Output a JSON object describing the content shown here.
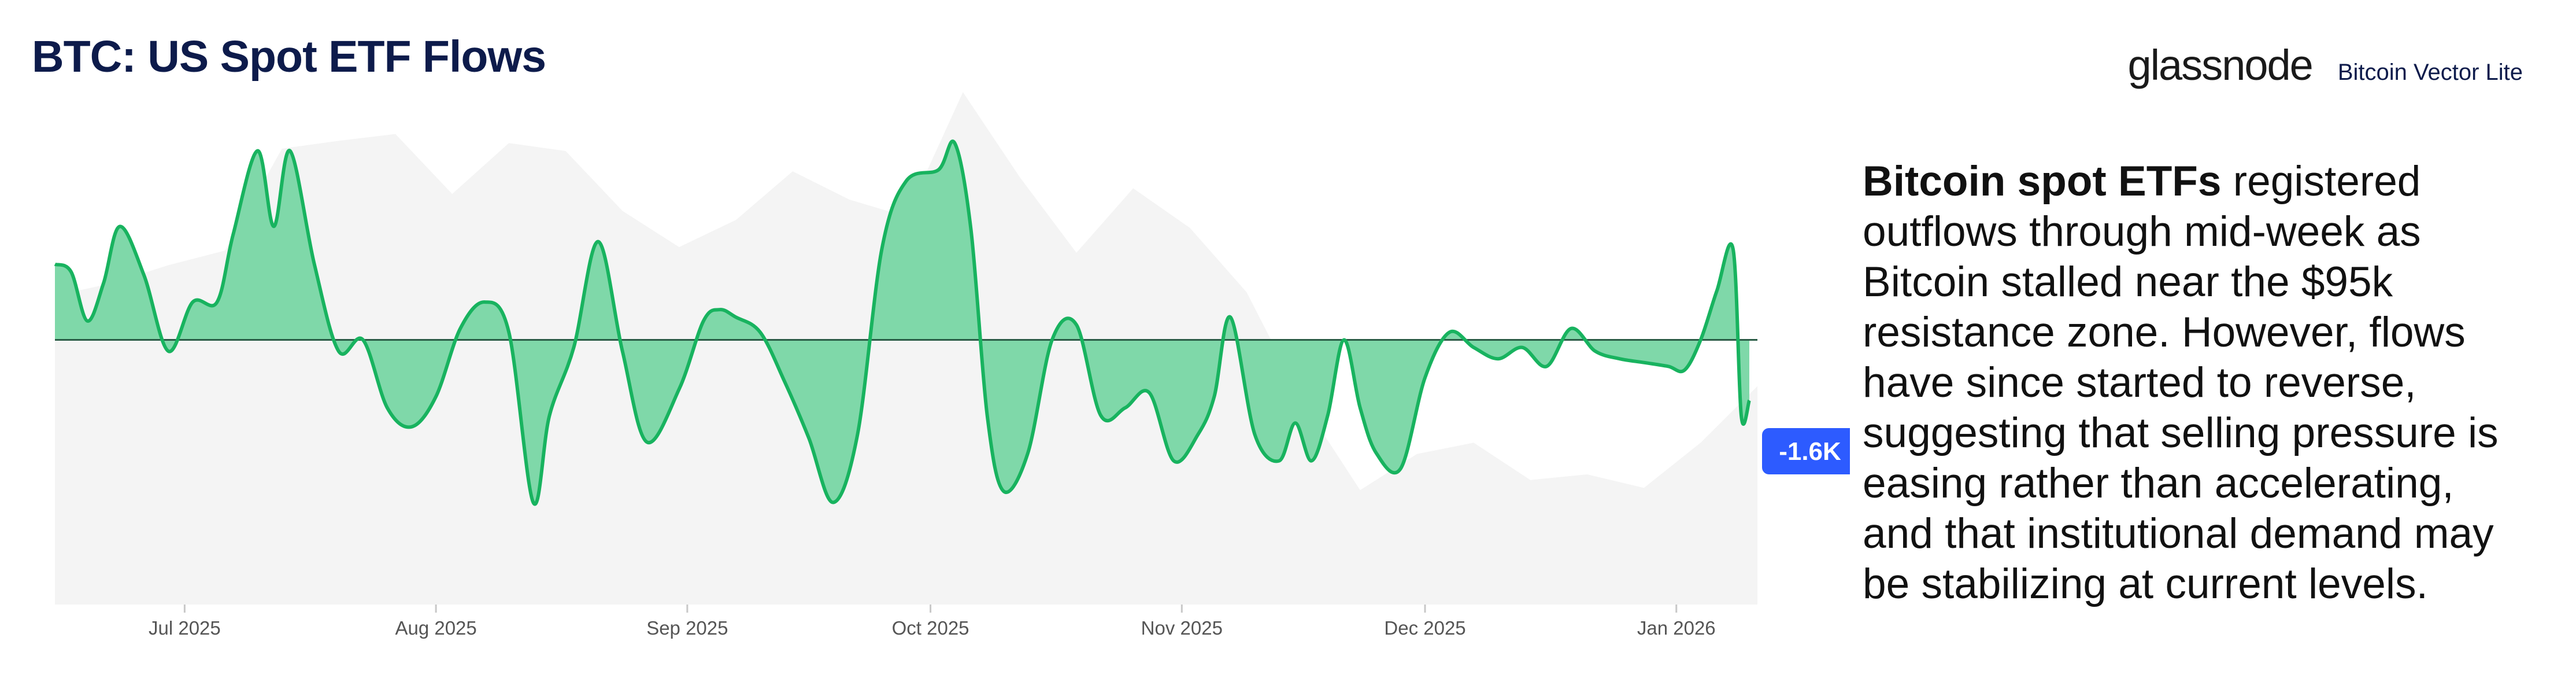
{
  "header": {
    "title": "BTC: US Spot ETF Flows",
    "brand_name": "glassnode",
    "brand_sub": "Bitcoin Vector Lite"
  },
  "commentary": {
    "lead": "Bitcoin spot ETFs",
    "body": " registered outflows through mid-week as Bitcoin stalled near the $95k resistance zone. However, flows have since started to reverse, suggesting that selling pressure is easing rather than accelerating, and that institutional demand may be stabilizing at current levels."
  },
  "colors": {
    "flow_line": "#18b35f",
    "flow_fill": "#7fd8a9",
    "price_area": "#f4f4f4",
    "zero_line": "#2a5c46",
    "badge": "#2d5bff"
  },
  "chart_data": {
    "type": "area",
    "title": "BTC: US Spot ETF Flows",
    "x_ticks": [
      "Jul 2025",
      "Aug 2025",
      "Sep 2025",
      "Oct 2025",
      "Nov 2025",
      "Dec 2025",
      "Jan 2026"
    ],
    "xlim": [
      "2025-06-15",
      "2026-01-11"
    ],
    "ylim": [
      -7000,
      7000
    ],
    "grid": false,
    "legend": "none",
    "series": [
      {
        "style": "area-line",
        "x": [
          "2025-06-15",
          "2025-06-17",
          "2025-06-19",
          "2025-06-21",
          "2025-06-23",
          "2025-06-26",
          "2025-06-29",
          "2025-07-02",
          "2025-07-05",
          "2025-07-07",
          "2025-07-10",
          "2025-07-12",
          "2025-07-14",
          "2025-07-17",
          "2025-07-20",
          "2025-07-23",
          "2025-07-26",
          "2025-07-29",
          "2025-08-01",
          "2025-08-04",
          "2025-08-07",
          "2025-08-10",
          "2025-08-13",
          "2025-08-15",
          "2025-08-18",
          "2025-08-21",
          "2025-08-24",
          "2025-08-27",
          "2025-08-31",
          "2025-09-03",
          "2025-09-05",
          "2025-09-07",
          "2025-09-10",
          "2025-09-13",
          "2025-09-16",
          "2025-09-19",
          "2025-09-22",
          "2025-09-25",
          "2025-09-28",
          "2025-10-02",
          "2025-10-04",
          "2025-10-06",
          "2025-10-08",
          "2025-10-10",
          "2025-10-13",
          "2025-10-16",
          "2025-10-19",
          "2025-10-22",
          "2025-10-25",
          "2025-10-28",
          "2025-10-31",
          "2025-11-03",
          "2025-11-05",
          "2025-11-07",
          "2025-11-10",
          "2025-11-13",
          "2025-11-15",
          "2025-11-17",
          "2025-11-19",
          "2025-11-21",
          "2025-11-23",
          "2025-11-25",
          "2025-11-28",
          "2025-12-01",
          "2025-12-04",
          "2025-12-07",
          "2025-12-10",
          "2025-12-13",
          "2025-12-16",
          "2025-12-19",
          "2025-12-22",
          "2025-12-25",
          "2025-12-28",
          "2025-12-31",
          "2026-01-02",
          "2026-01-04",
          "2026-01-06",
          "2026-01-08",
          "2026-01-09",
          "2026-01-10"
        ],
        "values": [
          2000,
          1800,
          500,
          1500,
          3000,
          1700,
          -300,
          1000,
          1000,
          2800,
          5000,
          3000,
          5000,
          2000,
          -300,
          0,
          -1800,
          -2300,
          -1500,
          300,
          1000,
          200,
          -4300,
          -2000,
          -200,
          2600,
          -300,
          -2700,
          -1300,
          500,
          800,
          600,
          200,
          -1100,
          -2600,
          -4300,
          -2500,
          2400,
          4200,
          4500,
          5200,
          2900,
          -2000,
          -4000,
          -3000,
          0,
          400,
          -2000,
          -1800,
          -1400,
          -3200,
          -2500,
          -1500,
          600,
          -2500,
          -3200,
          -2200,
          -3200,
          -2000,
          0,
          -1800,
          -3000,
          -3400,
          -1000,
          200,
          -200,
          -500,
          -200,
          -700,
          300,
          -300,
          -500,
          -600,
          -700,
          -800,
          0,
          1300,
          2400,
          -2000,
          -1600
        ]
      },
      {
        "style": "price-backdrop",
        "x": [
          "2025-06-15",
          "2025-06-22",
          "2025-06-29",
          "2025-07-06",
          "2025-07-13",
          "2025-07-20",
          "2025-07-27",
          "2025-08-03",
          "2025-08-10",
          "2025-08-17",
          "2025-08-24",
          "2025-08-31",
          "2025-09-07",
          "2025-09-14",
          "2025-09-21",
          "2025-09-28",
          "2025-10-05",
          "2025-10-12",
          "2025-10-19",
          "2025-10-26",
          "2025-11-02",
          "2025-11-09",
          "2025-11-16",
          "2025-11-23",
          "2025-11-30",
          "2025-12-07",
          "2025-12-14",
          "2025-12-21",
          "2025-12-28",
          "2026-01-04",
          "2026-01-11"
        ],
        "values": [
          104500,
          105600,
          107200,
          108500,
          117500,
          118200,
          118800,
          113500,
          118000,
          117300,
          112000,
          108800,
          111200,
          115500,
          113000,
          111500,
          122500,
          115000,
          108300,
          114000,
          110500,
          104800,
          95000,
          87300,
          90500,
          91500,
          88200,
          88700,
          87500,
          91500,
          96500
        ]
      }
    ]
  },
  "badge": {
    "text": "-1.6K"
  }
}
